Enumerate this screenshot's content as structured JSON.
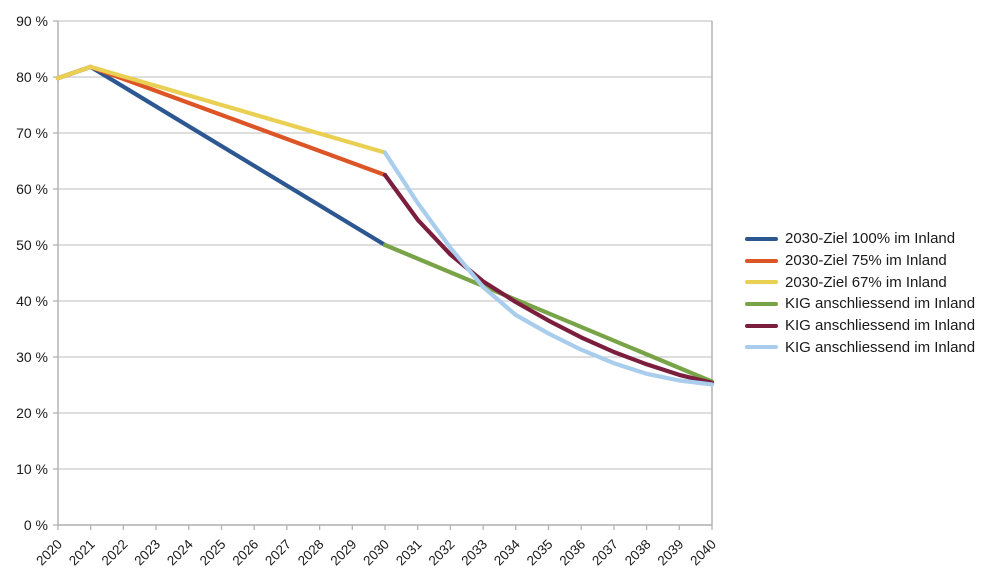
{
  "chart_data": {
    "type": "line",
    "title": "",
    "xlabel": "",
    "ylabel": "",
    "xlim": [
      2020,
      2040
    ],
    "ylim": [
      0,
      90
    ],
    "grid": "horizontal",
    "legend_position": "right",
    "background": "#ffffff",
    "grid_color": "#c9c9c9",
    "axis_color": "#b3b3b3",
    "text_color": "#1a1a1a",
    "x_tick_labels": [
      "2020",
      "2021",
      "2022",
      "2023",
      "2024",
      "2025",
      "2026",
      "2027",
      "2028",
      "2029",
      "2030",
      "2031",
      "2032",
      "2033",
      "2034",
      "2035",
      "2036",
      "2037",
      "2038",
      "2039",
      "2040"
    ],
    "y_ticks": [
      {
        "value": 0,
        "label": "0 %"
      },
      {
        "value": 10,
        "label": "10 %"
      },
      {
        "value": 20,
        "label": "20 %"
      },
      {
        "value": 30,
        "label": "30 %"
      },
      {
        "value": 40,
        "label": "40 %"
      },
      {
        "value": 50,
        "label": "50 %"
      },
      {
        "value": 60,
        "label": "60 %"
      },
      {
        "value": 70,
        "label": "70 %"
      },
      {
        "value": 80,
        "label": "80 %"
      },
      {
        "value": 90,
        "label": "90 %"
      }
    ],
    "series": [
      {
        "name": "2030-Ziel 100% im Inland",
        "color": "#2d5791",
        "points": [
          [
            2020,
            79.8
          ],
          [
            2021,
            81.8
          ],
          [
            2030,
            50.0
          ]
        ]
      },
      {
        "name": "2030-Ziel 75% im Inland",
        "color": "#dc5526",
        "points": [
          [
            2020,
            79.8
          ],
          [
            2021,
            81.8
          ],
          [
            2030,
            62.5
          ]
        ]
      },
      {
        "name": "2030-Ziel 67% im Inland",
        "color": "#e9cf52",
        "points": [
          [
            2020,
            79.8
          ],
          [
            2021,
            81.8
          ],
          [
            2030,
            66.5
          ]
        ]
      },
      {
        "name": "KIG anschliessend im Inland",
        "color": "#78a347",
        "points": [
          [
            2030,
            50.0
          ],
          [
            2040,
            25.6
          ]
        ]
      },
      {
        "name": "KIG anschliessend im Inland",
        "color": "#7b1d3d",
        "points": [
          [
            2030,
            62.5
          ],
          [
            2031,
            54.5
          ],
          [
            2032,
            48.3
          ],
          [
            2033,
            43.5
          ],
          [
            2034,
            39.8
          ],
          [
            2035,
            36.5
          ],
          [
            2036,
            33.5
          ],
          [
            2037,
            30.9
          ],
          [
            2038,
            28.7
          ],
          [
            2039,
            26.8
          ],
          [
            2040,
            25.4
          ]
        ]
      },
      {
        "name": "KIG anschliessend im Inland",
        "color": "#a9cdec",
        "points": [
          [
            2030,
            66.5
          ],
          [
            2031,
            57.5
          ],
          [
            2032,
            49.5
          ],
          [
            2033,
            42.5
          ],
          [
            2034,
            37.5
          ],
          [
            2035,
            34.2
          ],
          [
            2036,
            31.3
          ],
          [
            2037,
            28.9
          ],
          [
            2038,
            27.0
          ],
          [
            2039,
            25.8
          ],
          [
            2040,
            25.1
          ]
        ]
      }
    ]
  }
}
